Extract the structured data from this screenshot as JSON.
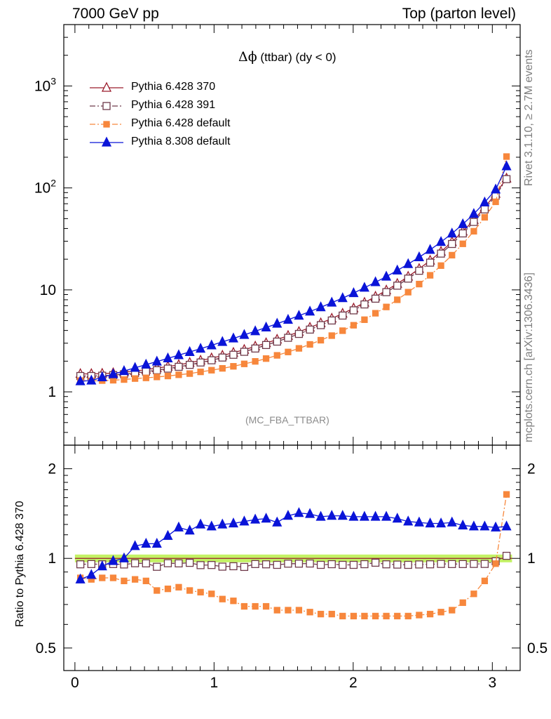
{
  "header": {
    "left": "7000 GeV pp",
    "right": "Top (parton level)"
  },
  "side_text": {
    "top": "Rivet 3.1.10, ≥ 2.7M events",
    "bottom": "mcplots.cern.ch [arXiv:1306.3436]"
  },
  "plot_title": {
    "symbol": "Δϕ",
    "text": " (ttbar) (dy < 0)"
  },
  "analysis_tag": "(MC_FBA_TTBAR)",
  "ratio_ylabel": "Ratio to Pythia 6.428 370",
  "colors": {
    "p370": "#9b1c2c",
    "p391": "#6e3a4a",
    "p6def": "#f7873c",
    "p8def": "#0a14d8",
    "band": "#b9f04a"
  },
  "chart_data": [
    {
      "type": "line",
      "panel": "main",
      "yscale": "log",
      "xlim": [
        -0.08,
        3.2
      ],
      "ylim": [
        0.3,
        4000
      ],
      "yticks": [
        1,
        10,
        100,
        1000
      ],
      "ytick_labels": [
        "1",
        "10",
        "10^2",
        "10^3"
      ],
      "legend_position": "top-left",
      "x": [
        0.039,
        0.118,
        0.196,
        0.275,
        0.353,
        0.432,
        0.511,
        0.589,
        0.668,
        0.746,
        0.825,
        0.903,
        0.982,
        1.06,
        1.139,
        1.217,
        1.296,
        1.374,
        1.453,
        1.532,
        1.61,
        1.689,
        1.767,
        1.846,
        1.924,
        2.003,
        2.081,
        2.16,
        2.238,
        2.317,
        2.395,
        2.474,
        2.553,
        2.631,
        2.71,
        2.788,
        2.867,
        2.945,
        3.024,
        3.102
      ],
      "series": [
        {
          "name": "Pythia 6.428 370",
          "key": "p370",
          "marker": "triangle-open",
          "dash": "solid",
          "values": [
            1.5,
            1.5,
            1.51,
            1.53,
            1.56,
            1.6,
            1.65,
            1.71,
            1.77,
            1.84,
            1.93,
            2.03,
            2.14,
            2.27,
            2.42,
            2.59,
            2.79,
            3.01,
            3.26,
            3.55,
            3.88,
            4.27,
            4.72,
            5.24,
            5.86,
            6.6,
            7.5,
            8.6,
            9.9,
            11.5,
            13.5,
            16.1,
            19.4,
            23.7,
            29.5,
            37.4,
            48.5,
            64.4,
            87.7,
            124
          ]
        },
        {
          "name": "Pythia 6.428 391",
          "key": "p391",
          "marker": "square-open",
          "dash": "dashdot",
          "values": [
            1.43,
            1.43,
            1.44,
            1.46,
            1.49,
            1.53,
            1.58,
            1.63,
            1.69,
            1.76,
            1.84,
            1.94,
            2.04,
            2.17,
            2.31,
            2.47,
            2.66,
            2.88,
            3.11,
            3.39,
            3.7,
            4.08,
            4.51,
            5.01,
            5.6,
            6.3,
            7.2,
            8.2,
            9.5,
            11.0,
            12.9,
            15.4,
            18.5,
            22.7,
            28.2,
            35.8,
            46.4,
            61.6,
            83.9,
            122
          ]
        },
        {
          "name": "Pythia 6.428 default",
          "key": "p6def",
          "marker": "square-filled",
          "dash": "dashdot",
          "values": [
            1.29,
            1.28,
            1.29,
            1.3,
            1.32,
            1.35,
            1.37,
            1.4,
            1.43,
            1.47,
            1.51,
            1.57,
            1.63,
            1.7,
            1.78,
            1.88,
            1.99,
            2.12,
            2.28,
            2.46,
            2.67,
            2.92,
            3.21,
            3.56,
            3.98,
            4.5,
            5.1,
            5.9,
            6.8,
            8.0,
            9.5,
            11.4,
            13.9,
            17.3,
            21.9,
            28.3,
            37.6,
            51.5,
            73.1,
            203
          ]
        },
        {
          "name": "Pythia 8.308 default",
          "key": "p8def",
          "marker": "triangle-filled",
          "dash": "solid",
          "values": [
            1.27,
            1.29,
            1.39,
            1.49,
            1.6,
            1.72,
            1.85,
            1.98,
            2.13,
            2.29,
            2.46,
            2.65,
            2.86,
            3.09,
            3.34,
            3.62,
            3.93,
            4.28,
            4.66,
            5.09,
            5.58,
            6.13,
            6.76,
            7.5,
            8.3,
            9.3,
            10.5,
            11.9,
            13.5,
            15.5,
            17.9,
            20.9,
            24.7,
            29.5,
            35.7,
            44.1,
            55.6,
            72.1,
            96.5,
            163
          ]
        }
      ]
    },
    {
      "type": "line",
      "panel": "ratio",
      "ylabel": "Ratio to Pythia 6.428 370",
      "xlim": [
        -0.08,
        3.2
      ],
      "ylim": [
        0.42,
        2.4
      ],
      "yticks": [
        0.5,
        1,
        2
      ],
      "ytick_labels": [
        "0.5",
        "1",
        "2"
      ],
      "xticks": [
        0,
        1,
        2,
        3
      ],
      "xtick_labels": [
        "0",
        "1",
        "2",
        "3"
      ],
      "reference_band": [
        0.97,
        1.03
      ],
      "x": [
        0.039,
        0.118,
        0.196,
        0.275,
        0.353,
        0.432,
        0.511,
        0.589,
        0.668,
        0.746,
        0.825,
        0.903,
        0.982,
        1.06,
        1.139,
        1.217,
        1.296,
        1.374,
        1.453,
        1.532,
        1.61,
        1.689,
        1.767,
        1.846,
        1.924,
        2.003,
        2.081,
        2.16,
        2.238,
        2.317,
        2.395,
        2.474,
        2.553,
        2.631,
        2.71,
        2.788,
        2.867,
        2.945,
        3.024,
        3.102
      ],
      "series": [
        {
          "name": "Pythia 6.428 391",
          "key": "p391",
          "marker": "square-open",
          "dash": "dashdot",
          "values": [
            0.955,
            0.957,
            0.955,
            0.957,
            0.954,
            0.963,
            0.962,
            0.937,
            0.963,
            0.962,
            0.966,
            0.949,
            0.95,
            0.938,
            0.941,
            0.936,
            0.957,
            0.955,
            0.951,
            0.96,
            0.96,
            0.961,
            0.951,
            0.956,
            0.951,
            0.951,
            0.956,
            0.967,
            0.955,
            0.953,
            0.951,
            0.954,
            0.955,
            0.958,
            0.957,
            0.957,
            0.958,
            0.958,
            0.978,
            1.02
          ]
        },
        {
          "name": "Pythia 6.428 default",
          "key": "p6def",
          "marker": "square-filled",
          "dash": "dashdot",
          "values": [
            0.86,
            0.85,
            0.86,
            0.86,
            0.84,
            0.85,
            0.84,
            0.78,
            0.79,
            0.8,
            0.78,
            0.77,
            0.76,
            0.73,
            0.72,
            0.69,
            0.69,
            0.69,
            0.67,
            0.67,
            0.67,
            0.66,
            0.65,
            0.65,
            0.64,
            0.64,
            0.64,
            0.64,
            0.64,
            0.64,
            0.64,
            0.645,
            0.65,
            0.66,
            0.67,
            0.71,
            0.76,
            0.84,
            0.96,
            1.64
          ]
        },
        {
          "name": "Pythia 8.308 default",
          "key": "p8def",
          "marker": "triangle-filled",
          "dash": "solid",
          "values": [
            0.85,
            0.88,
            0.94,
            0.98,
            1.0,
            1.1,
            1.12,
            1.12,
            1.19,
            1.27,
            1.24,
            1.3,
            1.28,
            1.3,
            1.31,
            1.33,
            1.35,
            1.36,
            1.32,
            1.39,
            1.42,
            1.41,
            1.38,
            1.39,
            1.39,
            1.38,
            1.38,
            1.38,
            1.38,
            1.36,
            1.33,
            1.32,
            1.31,
            1.31,
            1.32,
            1.29,
            1.28,
            1.28,
            1.27,
            1.28
          ]
        }
      ]
    }
  ]
}
